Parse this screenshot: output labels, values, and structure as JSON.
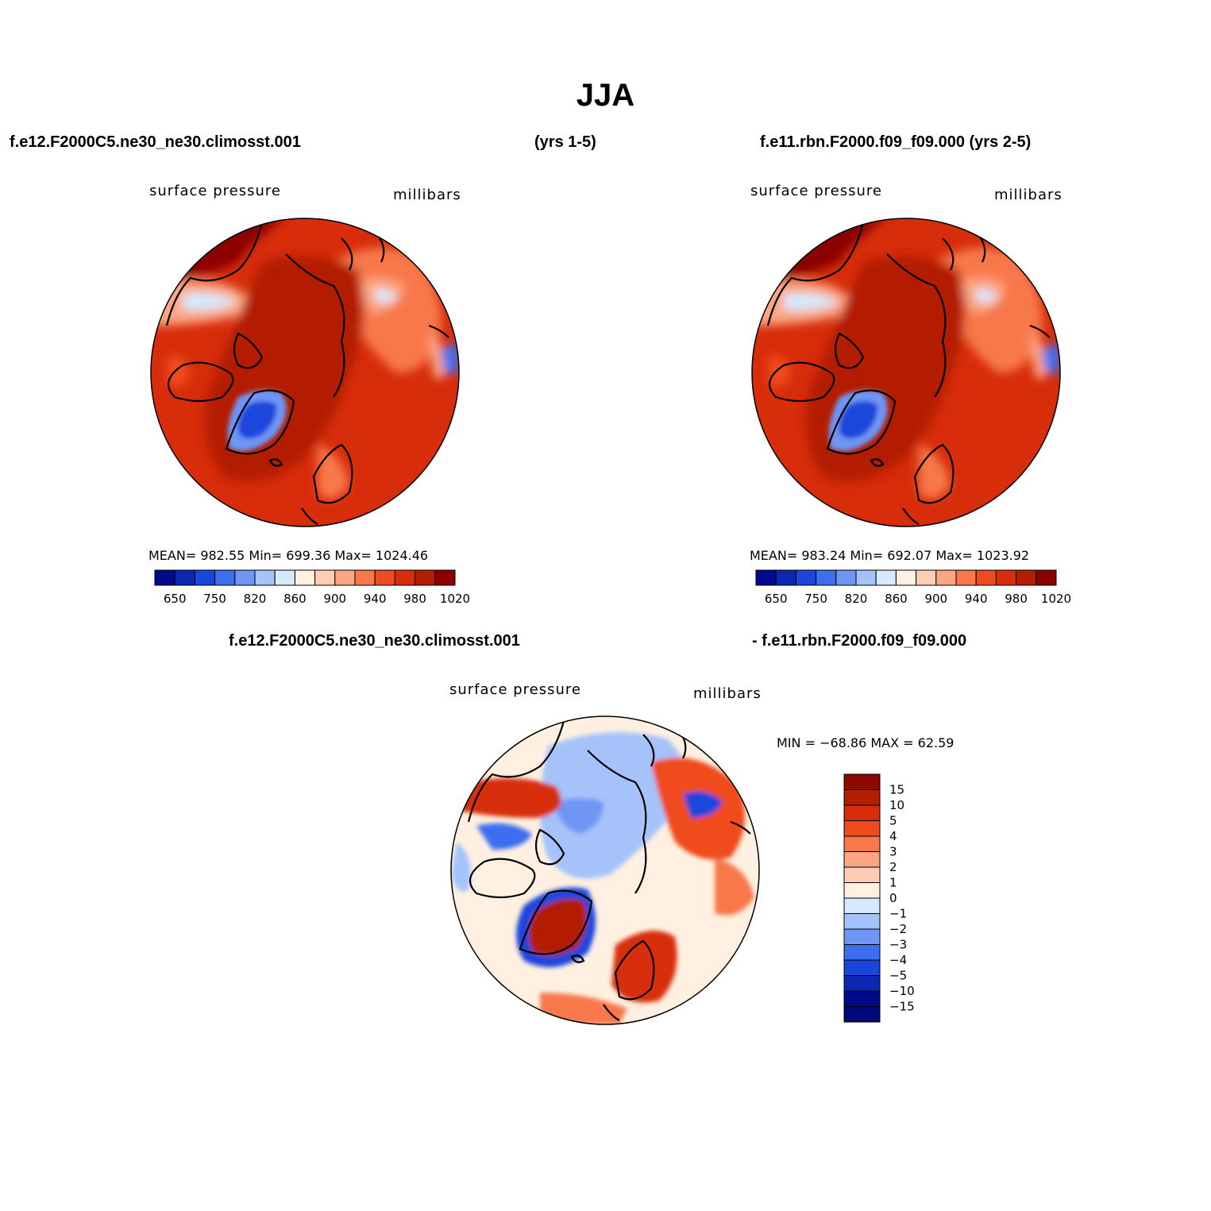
{
  "figure": {
    "title": "JJA",
    "case1_title": "f.e12.F2000C5.ne30_ne30.climosst.001",
    "case1_years": "(yrs 1-5)",
    "case2_title": "f.e11.rbn.F2000.f09_f09.000 (yrs 2-5)",
    "diff_title_left": "f.e12.F2000C5.ne30_ne30.climosst.001",
    "diff_title_right": "- f.e11.rbn.F2000.f09_f09.000"
  },
  "panels": [
    {
      "variable": "surface pressure",
      "units": "millibars",
      "stats_text": "MEAN=  982.55   Min=  699.36   Max=  1024.46",
      "mean": 982.55,
      "min": 699.36,
      "max": 1024.46
    },
    {
      "variable": "surface pressure",
      "units": "millibars",
      "stats_text": "MEAN=  983.24   Min=  692.07   Max=  1023.92",
      "mean": 983.24,
      "min": 692.07,
      "max": 1023.92
    },
    {
      "variable": "surface pressure",
      "units": "millibars",
      "stats_text": "MIN = −68.86  MAX =   62.59",
      "min": -68.86,
      "max": 62.59
    }
  ],
  "colorbar_horizontal": {
    "labels": [
      "650",
      "750",
      "820",
      "860",
      "900",
      "940",
      "980",
      "1020"
    ],
    "colors": [
      "#000a8c",
      "#0a28b4",
      "#1a46dc",
      "#3c6ef0",
      "#6e96f5",
      "#a5c3fa",
      "#d7e9fd",
      "#fff0e1",
      "#ffcdb4",
      "#fca582",
      "#f8784b",
      "#f04b1e",
      "#d72d0a",
      "#b41e00",
      "#8c0000"
    ]
  },
  "colorbar_vertical": {
    "labels": [
      "15",
      "10",
      "5",
      "4",
      "3",
      "2",
      "1",
      "0",
      "−1",
      "−2",
      "−3",
      "−4",
      "−5",
      "−10",
      "−15"
    ],
    "colors": [
      "#8c0a00",
      "#b41e00",
      "#d72d0a",
      "#f04b1e",
      "#f8784b",
      "#fca582",
      "#ffcdb4",
      "#fff0e1",
      "#d7e9fd",
      "#a5c3fa",
      "#6e96f5",
      "#3c6ef0",
      "#1a46dc",
      "#0a28b4",
      "#000a8c",
      "#00087a"
    ]
  }
}
